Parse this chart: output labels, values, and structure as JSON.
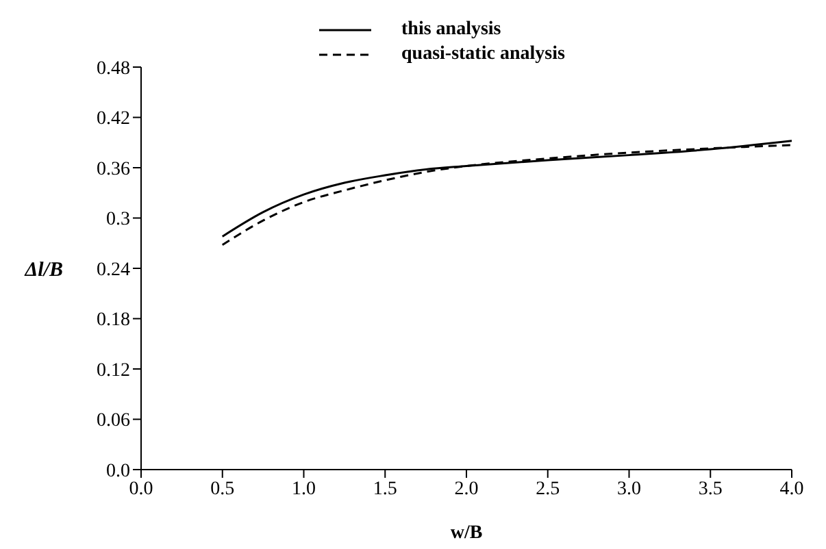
{
  "chart_data": {
    "type": "line",
    "xlabel": "w/B",
    "ylabel": "Δl/B",
    "x": [
      0.5,
      0.75,
      1.0,
      1.25,
      1.5,
      1.75,
      2.0,
      2.5,
      3.0,
      3.5,
      4.0
    ],
    "series": [
      {
        "name": "this analysis",
        "color": "#000000",
        "line_style": "solid",
        "values": [
          0.278,
          0.307,
          0.328,
          0.342,
          0.351,
          0.358,
          0.362,
          0.369,
          0.375,
          0.382,
          0.392
        ]
      },
      {
        "name": "quasi-static analysis",
        "color": "#000000",
        "line_style": "dashed",
        "values": [
          0.268,
          0.297,
          0.319,
          0.333,
          0.345,
          0.355,
          0.362,
          0.371,
          0.378,
          0.383,
          0.387
        ]
      }
    ],
    "xlim": [
      0,
      4.0
    ],
    "xticks": [
      {
        "value": 0,
        "label": "0.0"
      },
      0.5,
      {
        "value": 1,
        "label": "1.0"
      },
      1.5,
      {
        "value": 2,
        "label": "2.0"
      },
      2.5,
      {
        "value": 3,
        "label": "3.0"
      },
      3.5,
      {
        "value": 4,
        "label": "4.0"
      }
    ],
    "ylim": [
      0,
      0.48
    ],
    "yticks": [
      {
        "value": 0,
        "label": "0.0"
      },
      0.06,
      0.12,
      0.18,
      0.24,
      0.3,
      0.36,
      0.42,
      0.48
    ],
    "grid": false,
    "legend": "top",
    "marker": "none"
  }
}
